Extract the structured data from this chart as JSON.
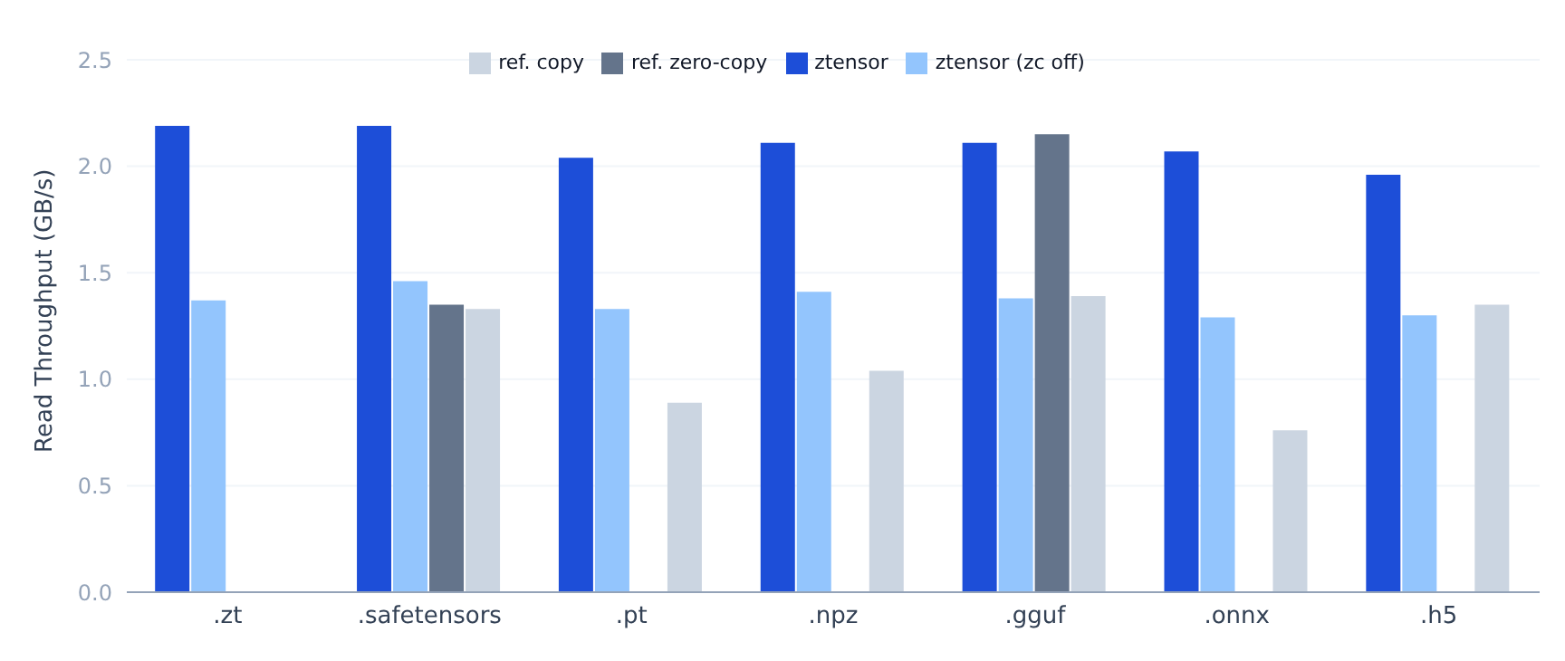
{
  "chart_data": {
    "type": "bar",
    "ylabel": "Read Throughput (GB/s)",
    "categories": [
      ".zt",
      ".safetensors",
      ".pt",
      ".npz",
      ".gguf",
      ".onnx",
      ".h5"
    ],
    "series": [
      {
        "name": "ztensor",
        "color": "#1d4ed8",
        "values": [
          2.19,
          2.19,
          2.04,
          2.11,
          2.11,
          2.07,
          1.96
        ]
      },
      {
        "name": "ztensor (zc off)",
        "color": "#93c5fd",
        "values": [
          1.37,
          1.46,
          1.33,
          1.41,
          1.38,
          1.29,
          1.3
        ]
      },
      {
        "name": "ref. zero-copy",
        "color": "#64748b",
        "values": [
          null,
          1.35,
          null,
          null,
          2.15,
          null,
          null
        ]
      },
      {
        "name": "ref. copy",
        "color": "#cbd5e1",
        "values": [
          null,
          1.33,
          0.89,
          1.04,
          1.39,
          0.76,
          1.35
        ]
      }
    ],
    "ylim": [
      0,
      2.5
    ],
    "yticks": [
      {
        "value": 0,
        "label": "0.0"
      },
      0.5,
      {
        "value": 1,
        "label": "1.0"
      },
      1.5,
      {
        "value": 2,
        "label": "2.0"
      },
      2.5
    ],
    "grid": "y",
    "legend": "top"
  }
}
